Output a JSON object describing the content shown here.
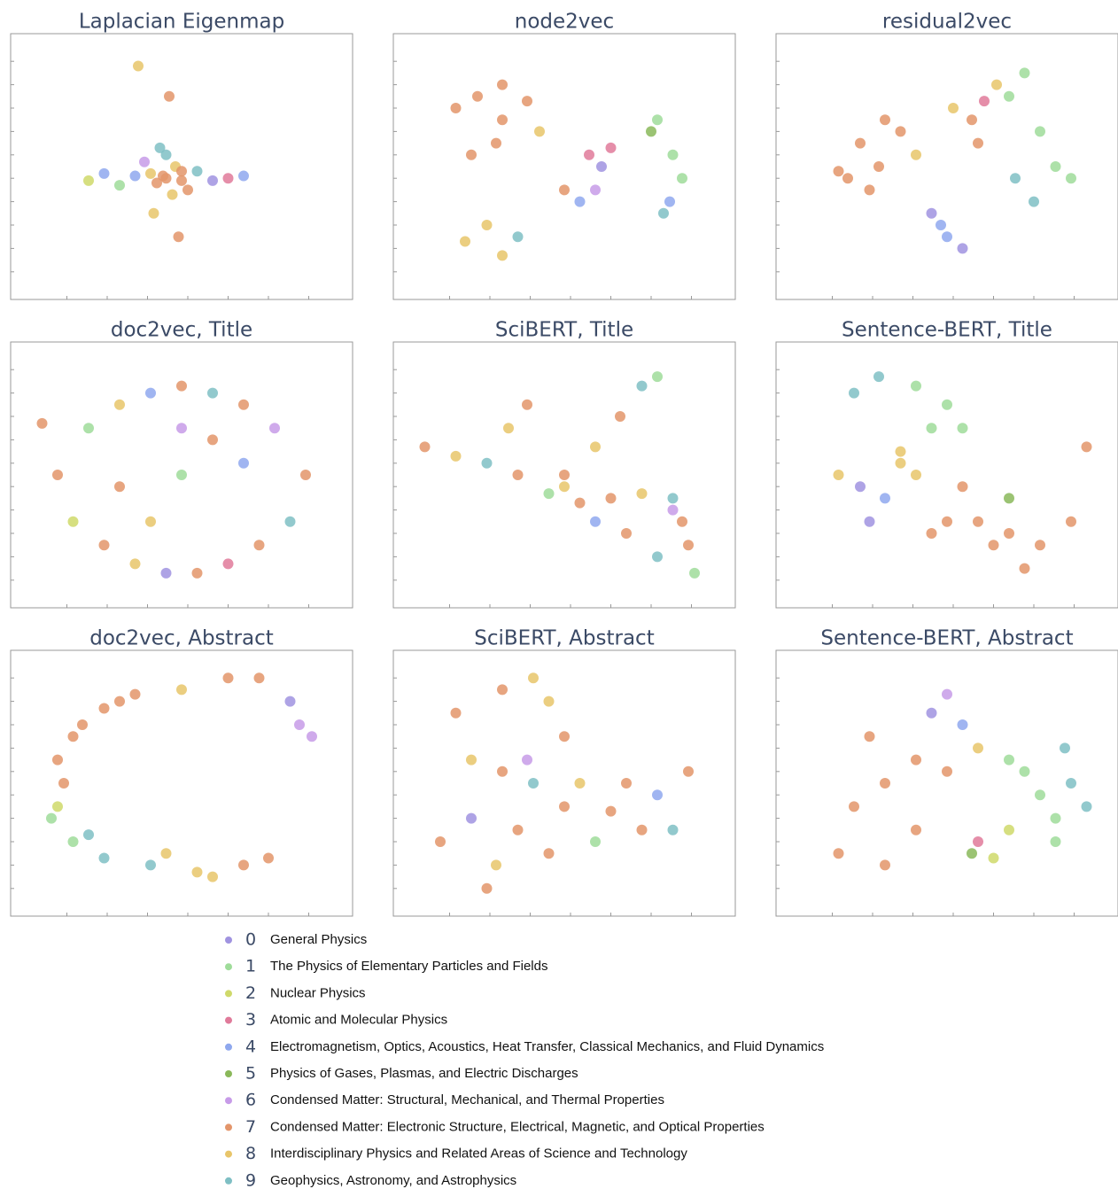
{
  "chart_data": [
    {
      "type": "scatter",
      "title": "Laplacian Eigenmap",
      "xlim": [
        0,
        100
      ],
      "ylim": [
        0,
        100
      ],
      "xticks": [
        13,
        26,
        39,
        52,
        65,
        78,
        91
      ],
      "yticks": [
        5,
        15,
        25,
        35,
        45,
        55,
        65,
        75,
        85,
        95
      ],
      "x": [
        45,
        40,
        50,
        35,
        55,
        42,
        48,
        30,
        60,
        45,
        38,
        52,
        25,
        65,
        44,
        47,
        43,
        50,
        20,
        70,
        46,
        41,
        49,
        36
      ],
      "y": [
        45,
        47,
        44,
        46,
        48,
        43,
        50,
        42,
        44,
        55,
        52,
        40,
        47,
        45,
        46,
        38,
        58,
        48,
        44,
        46,
        80,
        30,
        20,
        93
      ],
      "groups": [
        7,
        8,
        7,
        4,
        9,
        7,
        8,
        1,
        0,
        9,
        6,
        7,
        4,
        3,
        7,
        8,
        9,
        7,
        2,
        4,
        7,
        8,
        7,
        8
      ]
    },
    {
      "type": "scatter",
      "title": "node2vec",
      "xlim": [
        0,
        100
      ],
      "ylim": [
        0,
        100
      ],
      "xticks": [
        13,
        26,
        39,
        52,
        65,
        78,
        91
      ],
      "yticks": [
        5,
        15,
        25,
        35,
        45,
        55,
        65,
        75,
        85,
        95
      ],
      "x": [
        15,
        22,
        30,
        38,
        28,
        42,
        20,
        25,
        18,
        30,
        35,
        58,
        62,
        55,
        60,
        80,
        85,
        88,
        78,
        82,
        84,
        30,
        65,
        50
      ],
      "y": [
        75,
        80,
        70,
        78,
        60,
        65,
        55,
        25,
        18,
        12,
        20,
        55,
        50,
        35,
        40,
        70,
        55,
        45,
        65,
        30,
        35,
        85,
        58,
        40
      ],
      "groups": [
        7,
        7,
        7,
        7,
        7,
        8,
        7,
        8,
        8,
        8,
        9,
        3,
        0,
        4,
        6,
        1,
        1,
        1,
        5,
        9,
        4,
        7,
        3,
        7
      ]
    },
    {
      "type": "scatter",
      "title": "residual2vec",
      "xlim": [
        0,
        100
      ],
      "ylim": [
        0,
        100
      ],
      "xticks": [
        13,
        26,
        39,
        52,
        65,
        78,
        91
      ],
      "yticks": [
        5,
        15,
        25,
        35,
        45,
        55,
        65,
        75,
        85,
        95
      ],
      "x": [
        22,
        28,
        35,
        18,
        40,
        30,
        52,
        58,
        45,
        50,
        70,
        75,
        80,
        85,
        90,
        72,
        78,
        60,
        48,
        62,
        25,
        15,
        66,
        55
      ],
      "y": [
        60,
        50,
        65,
        45,
        55,
        70,
        75,
        70,
        30,
        20,
        80,
        90,
        65,
        50,
        45,
        45,
        35,
        60,
        25,
        78,
        40,
        48,
        85,
        15
      ],
      "groups": [
        7,
        7,
        7,
        7,
        8,
        7,
        8,
        7,
        0,
        4,
        1,
        1,
        1,
        1,
        1,
        9,
        9,
        7,
        4,
        3,
        7,
        7,
        8,
        0
      ]
    },
    {
      "type": "scatter",
      "title": "doc2vec, Title",
      "xlim": [
        0,
        100
      ],
      "ylim": [
        0,
        100
      ],
      "xticks": [
        13,
        26,
        39,
        52,
        65,
        78,
        91
      ],
      "yticks": [
        5,
        15,
        25,
        35,
        45,
        55,
        65,
        75,
        85,
        95
      ],
      "x": [
        10,
        20,
        30,
        40,
        50,
        60,
        70,
        80,
        90,
        15,
        25,
        35,
        45,
        55,
        65,
        75,
        85,
        50,
        30,
        70,
        40,
        60,
        50,
        5
      ],
      "y": [
        50,
        70,
        80,
        85,
        88,
        85,
        80,
        70,
        50,
        30,
        20,
        12,
        8,
        8,
        12,
        20,
        30,
        50,
        45,
        55,
        30,
        65,
        70,
        72
      ],
      "groups": [
        7,
        1,
        8,
        4,
        7,
        9,
        7,
        6,
        7,
        2,
        7,
        8,
        0,
        7,
        3,
        7,
        9,
        1,
        7,
        4,
        8,
        7,
        6,
        7
      ]
    },
    {
      "type": "scatter",
      "title": "SciBERT, Title",
      "xlim": [
        0,
        100
      ],
      "ylim": [
        0,
        100
      ],
      "xticks": [
        13,
        26,
        39,
        52,
        65,
        78,
        91
      ],
      "yticks": [
        5,
        15,
        25,
        35,
        45,
        55,
        65,
        75,
        85,
        95
      ],
      "x": [
        5,
        15,
        25,
        35,
        45,
        32,
        38,
        50,
        60,
        68,
        75,
        80,
        55,
        65,
        75,
        85,
        90,
        92,
        70,
        80,
        60,
        88,
        50,
        85
      ],
      "y": [
        62,
        58,
        55,
        50,
        42,
        70,
        80,
        50,
        62,
        75,
        88,
        92,
        38,
        40,
        42,
        40,
        20,
        8,
        25,
        15,
        30,
        30,
        45,
        35
      ],
      "groups": [
        7,
        8,
        9,
        7,
        1,
        8,
        7,
        7,
        8,
        7,
        9,
        1,
        7,
        7,
        8,
        9,
        7,
        1,
        7,
        9,
        4,
        7,
        8,
        6
      ]
    },
    {
      "type": "scatter",
      "title": "Sentence-BERT, Title",
      "xlim": [
        0,
        100
      ],
      "ylim": [
        0,
        100
      ],
      "xticks": [
        13,
        26,
        39,
        52,
        65,
        78,
        91
      ],
      "yticks": [
        5,
        15,
        25,
        35,
        45,
        55,
        65,
        75,
        85,
        95
      ],
      "x": [
        20,
        28,
        40,
        50,
        55,
        45,
        15,
        22,
        30,
        35,
        40,
        55,
        60,
        70,
        80,
        90,
        65,
        75,
        50,
        35,
        25,
        45,
        95,
        70
      ],
      "y": [
        85,
        92,
        88,
        80,
        70,
        70,
        50,
        45,
        40,
        55,
        50,
        45,
        30,
        25,
        20,
        30,
        20,
        10,
        30,
        60,
        30,
        25,
        62,
        40
      ],
      "groups": [
        9,
        9,
        1,
        1,
        1,
        1,
        8,
        0,
        4,
        8,
        8,
        7,
        7,
        7,
        7,
        7,
        7,
        7,
        7,
        8,
        0,
        7,
        7,
        5
      ]
    },
    {
      "type": "scatter",
      "title": "doc2vec, Abstract",
      "xlim": [
        0,
        100
      ],
      "ylim": [
        0,
        100
      ],
      "xticks": [
        13,
        26,
        39,
        52,
        65,
        78,
        91
      ],
      "yticks": [
        5,
        15,
        25,
        35,
        45,
        55,
        65,
        75,
        85,
        95
      ],
      "x": [
        10,
        15,
        25,
        35,
        50,
        65,
        75,
        85,
        92,
        12,
        8,
        15,
        25,
        40,
        55,
        70,
        78,
        10,
        18,
        45,
        60,
        20,
        88,
        30
      ],
      "y": [
        60,
        70,
        82,
        88,
        90,
        95,
        95,
        85,
        70,
        50,
        35,
        25,
        18,
        15,
        12,
        15,
        18,
        40,
        75,
        20,
        10,
        28,
        75,
        85
      ],
      "groups": [
        7,
        7,
        7,
        7,
        8,
        7,
        7,
        0,
        6,
        7,
        1,
        1,
        9,
        9,
        8,
        7,
        7,
        2,
        7,
        8,
        8,
        9,
        6,
        7
      ]
    },
    {
      "type": "scatter",
      "title": "SciBERT, Abstract",
      "xlim": [
        0,
        100
      ],
      "ylim": [
        0,
        100
      ],
      "xticks": [
        13,
        26,
        39,
        52,
        65,
        78,
        91
      ],
      "yticks": [
        5,
        15,
        25,
        35,
        45,
        55,
        65,
        75,
        85,
        95
      ],
      "x": [
        15,
        20,
        30,
        40,
        50,
        35,
        28,
        45,
        60,
        75,
        90,
        70,
        80,
        30,
        40,
        20,
        10,
        55,
        50,
        25,
        85,
        65,
        38,
        45
      ],
      "y": [
        80,
        60,
        55,
        50,
        40,
        30,
        15,
        20,
        25,
        30,
        55,
        50,
        45,
        90,
        95,
        35,
        25,
        50,
        70,
        5,
        30,
        38,
        60,
        85
      ],
      "groups": [
        7,
        8,
        7,
        9,
        7,
        7,
        8,
        7,
        1,
        7,
        7,
        7,
        4,
        7,
        8,
        0,
        7,
        8,
        7,
        7,
        9,
        7,
        6,
        8
      ]
    },
    {
      "type": "scatter",
      "title": "Sentence-BERT, Abstract",
      "xlim": [
        0,
        100
      ],
      "ylim": [
        0,
        100
      ],
      "xticks": [
        13,
        26,
        39,
        52,
        65,
        78,
        91
      ],
      "yticks": [
        5,
        15,
        25,
        35,
        45,
        55,
        65,
        75,
        85,
        95
      ],
      "x": [
        20,
        30,
        15,
        25,
        40,
        45,
        50,
        55,
        60,
        70,
        75,
        80,
        85,
        90,
        95,
        70,
        85,
        60,
        50,
        40,
        30,
        58,
        88,
        65
      ],
      "y": [
        40,
        50,
        20,
        70,
        60,
        80,
        88,
        75,
        65,
        60,
        55,
        45,
        35,
        50,
        40,
        30,
        25,
        25,
        55,
        30,
        15,
        20,
        65,
        18
      ],
      "groups": [
        7,
        7,
        7,
        7,
        7,
        0,
        6,
        4,
        8,
        1,
        1,
        1,
        1,
        9,
        9,
        2,
        1,
        3,
        7,
        7,
        7,
        5,
        9,
        2
      ]
    }
  ],
  "legend": {
    "items": [
      {
        "id": 0,
        "label": "General Physics",
        "color": "#a093e0"
      },
      {
        "id": 1,
        "label": "The Physics of Elementary Particles and Fields",
        "color": "#9fdc9a"
      },
      {
        "id": 2,
        "label": "Nuclear Physics",
        "color": "#cfd96a"
      },
      {
        "id": 3,
        "label": "Atomic and Molecular Physics",
        "color": "#e07a9a"
      },
      {
        "id": 4,
        "label": "Electromagnetism, Optics, Acoustics, Heat Transfer, Classical Mechanics, and Fluid Dynamics",
        "color": "#8fa8ee"
      },
      {
        "id": 5,
        "label": "Physics of Gases, Plasmas, and Electric Discharges",
        "color": "#8ab85a"
      },
      {
        "id": 6,
        "label": "Condensed Matter: Structural, Mechanical, and Thermal Properties",
        "color": "#c79be8"
      },
      {
        "id": 7,
        "label": "Condensed Matter: Electronic Structure, Electrical, Magnetic, and Optical Properties",
        "color": "#e3956a"
      },
      {
        "id": 8,
        "label": "Interdisciplinary Physics and Related Areas of Science and Technology",
        "color": "#e8c56a"
      },
      {
        "id": 9,
        "label": "Geophysics, Astronomy, and Astrophysics",
        "color": "#7fbfc4"
      }
    ]
  }
}
